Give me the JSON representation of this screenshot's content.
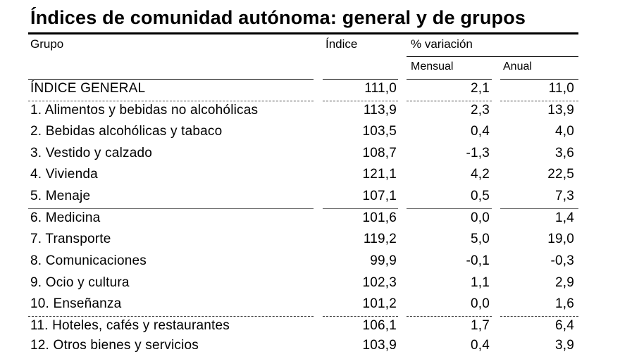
{
  "title": "Índices de comunidad autónoma: general y de grupos",
  "headers": {
    "grupo": "Grupo",
    "indice": "Índice",
    "variacion": "% variación",
    "mensual": "Mensual",
    "anual": "Anual"
  },
  "rows": [
    {
      "grupo": "ÍNDICE GENERAL",
      "indice": "111,0",
      "mensual": "2,1",
      "anual": "11,0"
    },
    {
      "grupo": "1. Alimentos y bebidas no alcohólicas",
      "indice": "113,9",
      "mensual": "2,3",
      "anual": "13,9"
    },
    {
      "grupo": "2. Bebidas alcohólicas y tabaco",
      "indice": "103,5",
      "mensual": "0,4",
      "anual": "4,0"
    },
    {
      "grupo": "3. Vestido y calzado",
      "indice": "108,7",
      "mensual": "-1,3",
      "anual": "3,6"
    },
    {
      "grupo": "4. Vivienda",
      "indice": "121,1",
      "mensual": "4,2",
      "anual": "22,5"
    },
    {
      "grupo": "5. Menaje",
      "indice": "107,1",
      "mensual": "0,5",
      "anual": "7,3"
    },
    {
      "grupo": "6. Medicina",
      "indice": "101,6",
      "mensual": "0,0",
      "anual": "1,4"
    },
    {
      "grupo": "7. Transporte",
      "indice": "119,2",
      "mensual": "5,0",
      "anual": "19,0"
    },
    {
      "grupo": "8. Comunicaciones",
      "indice": "99,9",
      "mensual": "-0,1",
      "anual": "-0,3"
    },
    {
      "grupo": "9. Ocio y cultura",
      "indice": "102,3",
      "mensual": "1,1",
      "anual": "2,9"
    },
    {
      "grupo": "10. Enseñanza",
      "indice": "101,2",
      "mensual": "0,0",
      "anual": "1,6"
    },
    {
      "grupo": "11. Hoteles, cafés y restaurantes",
      "indice": "106,1",
      "mensual": "1,7",
      "anual": "6,4"
    },
    {
      "grupo": "12. Otros bienes y servicios",
      "indice": "103,9",
      "mensual": "0,4",
      "anual": "3,9"
    }
  ]
}
